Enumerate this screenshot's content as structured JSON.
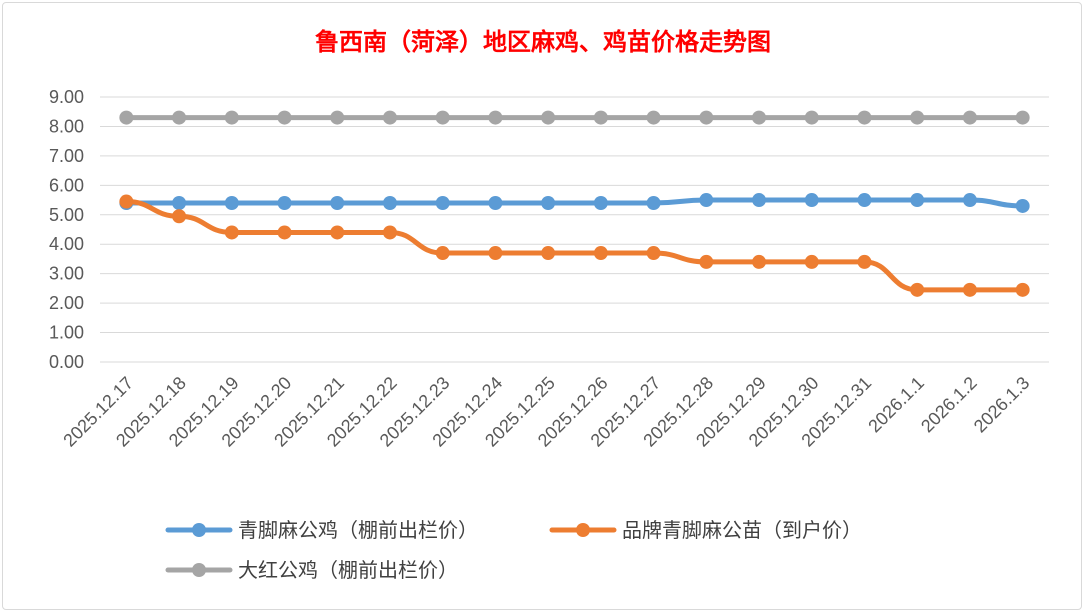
{
  "chart_data": {
    "type": "line",
    "title": "鲁西南（菏泽）地区麻鸡、鸡苗价格走势图",
    "xlabel": "",
    "ylabel": "",
    "ylim": [
      0,
      9
    ],
    "ytick_labels": [
      "0.00",
      "1.00",
      "2.00",
      "3.00",
      "4.00",
      "5.00",
      "6.00",
      "7.00",
      "8.00",
      "9.00"
    ],
    "categories": [
      "2025.12.17",
      "2025.12.18",
      "2025.12.19",
      "2025.12.20",
      "2025.12.21",
      "2025.12.22",
      "2025.12.23",
      "2025.12.24",
      "2025.12.25",
      "2025.12.26",
      "2025.12.27",
      "2025.12.28",
      "2025.12.29",
      "2025.12.30",
      "2025.12.31",
      "2026.1.1",
      "2026.1.2",
      "2026.1.3"
    ],
    "series": [
      {
        "name": "青脚麻公鸡（棚前出栏价）",
        "color": "#5b9bd5",
        "values": [
          5.4,
          5.4,
          5.4,
          5.4,
          5.4,
          5.4,
          5.4,
          5.4,
          5.4,
          5.4,
          5.4,
          5.5,
          5.5,
          5.5,
          5.5,
          5.5,
          5.5,
          5.3
        ]
      },
      {
        "name": "品牌青脚麻公苗（到户价）",
        "color": "#ed7d31",
        "values": [
          5.45,
          4.95,
          4.4,
          4.4,
          4.4,
          4.4,
          3.7,
          3.7,
          3.7,
          3.7,
          3.7,
          3.4,
          3.4,
          3.4,
          3.4,
          2.45,
          2.45,
          2.45
        ]
      },
      {
        "name": "大红公鸡（棚前出栏价）",
        "color": "#a5a5a5",
        "values": [
          8.3,
          8.3,
          8.3,
          8.3,
          8.3,
          8.3,
          8.3,
          8.3,
          8.3,
          8.3,
          8.3,
          8.3,
          8.3,
          8.3,
          8.3,
          8.3,
          8.3,
          8.3
        ]
      }
    ],
    "grid": true,
    "legend_position": "bottom"
  }
}
